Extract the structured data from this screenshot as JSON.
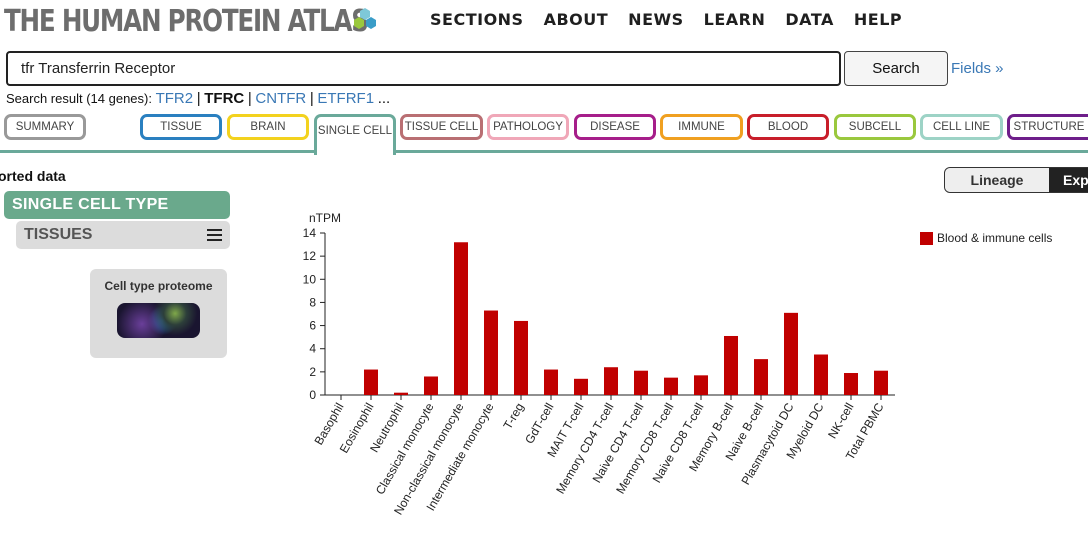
{
  "header": {
    "logo_text": "THE HUMAN PROTEIN ATLAS",
    "nav": [
      "SECTIONS",
      "ABOUT",
      "NEWS",
      "LEARN",
      "DATA",
      "HELP"
    ]
  },
  "search": {
    "value": "tfr Transferrin Receptor",
    "button_label": "Search",
    "fields_link": "Fields »",
    "result_prefix": "Search result (14 genes):",
    "genes": [
      "TFR2",
      "TFRC",
      "CNTFR",
      "ETFRF1"
    ],
    "active_gene": "TFRC",
    "more": "..."
  },
  "tabs": {
    "summary": "SUMMARY",
    "items": [
      {
        "label": "TISSUE",
        "color": "#2a80c0"
      },
      {
        "label": "BRAIN",
        "color": "#f3d21e"
      },
      {
        "label": "SINGLE CELL",
        "color": "#6aa99a"
      },
      {
        "label": "TISSUE CELL",
        "color": "#b96f73"
      },
      {
        "label": "PATHOLOGY",
        "color": "#f0a7b8"
      },
      {
        "label": "DISEASE",
        "color": "#a61e8a"
      },
      {
        "label": "IMMUNE",
        "color": "#f0a020"
      },
      {
        "label": "BLOOD",
        "color": "#c81e2a"
      },
      {
        "label": "SUBCELL",
        "color": "#9ac83e"
      },
      {
        "label": "CELL LINE",
        "color": "#9dd3c6"
      },
      {
        "label": "STRUCTURE",
        "color": "#6e1e8a"
      }
    ]
  },
  "left_panel": {
    "section_title": "orted data",
    "single_cell_type": "SINGLE CELL TYPE",
    "tissues": "TISSUES",
    "proteome_title": "Cell type proteome"
  },
  "toggle": {
    "lineage": "Lineage",
    "expression": "Exp"
  },
  "chart_data": {
    "type": "bar",
    "ylabel": "nTPM",
    "ylim": [
      0,
      14
    ],
    "yticks": [
      0,
      2,
      4,
      6,
      8,
      10,
      12,
      14
    ],
    "categories": [
      "Basophil",
      "Eosinophil",
      "Neutrophil",
      "Classical monocyte",
      "Non-classical monocyte",
      "Intermediate monocyte",
      "T-reg",
      "GdT-cell",
      "MAIT T-cell",
      "Memory CD4 T-cell",
      "Naive CD4 T-cell",
      "Memory CD8 T-cell",
      "Naive CD8 T-cell",
      "Memory B-cell",
      "Naive B-cell",
      "Plasmacytoid DC",
      "Myeloid DC",
      "NK-cell",
      "Total PBMC"
    ],
    "series": [
      {
        "name": "Blood & immune cells",
        "color": "#c00000",
        "values": [
          0,
          2.2,
          0.2,
          1.6,
          13.2,
          7.3,
          6.4,
          2.2,
          1.4,
          2.4,
          2.1,
          1.5,
          1.7,
          5.1,
          3.1,
          7.1,
          3.5,
          1.9,
          2.1
        ]
      }
    ]
  }
}
